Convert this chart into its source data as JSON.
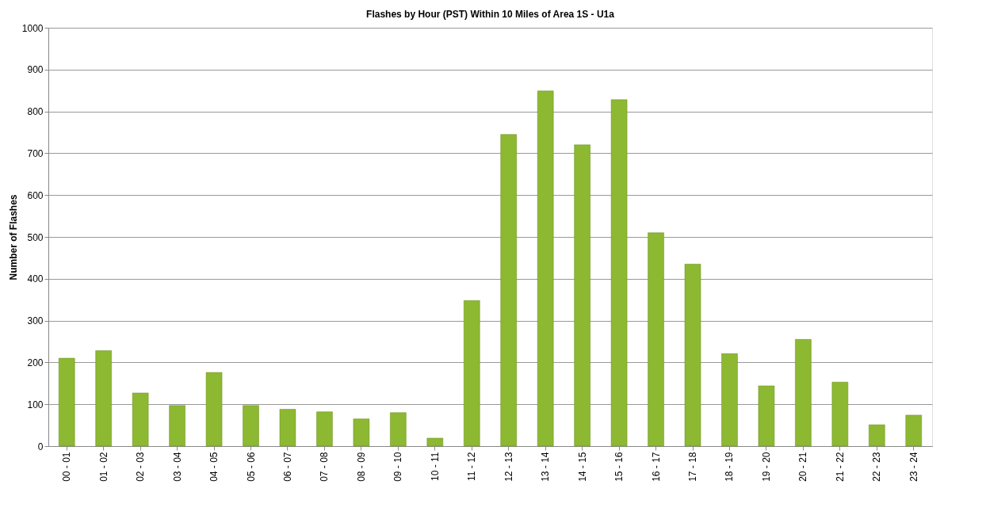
{
  "chart_data": {
    "type": "bar",
    "title": "Flashes by Hour (PST)  Within 10 Miles of Area 1S - U1a",
    "ylabel": "Number of Flashes",
    "categories": [
      "00 - 01",
      "01 - 02",
      "02 - 03",
      "03 - 04",
      "04 - 05",
      "05 - 06",
      "06 - 07",
      "07 - 08",
      "08 - 09",
      "09 - 10",
      "10 - 11",
      "11 - 12",
      "12 - 13",
      "13 - 14",
      "14 - 15",
      "15 - 16",
      "16 - 17",
      "17 - 18",
      "18 - 19",
      "19 - 20",
      "20 - 21",
      "21 - 22",
      "22 - 23",
      "23 - 24"
    ],
    "values": [
      210,
      228,
      127,
      97,
      176,
      97,
      88,
      82,
      65,
      80,
      19,
      348,
      745,
      849,
      720,
      828,
      510,
      435,
      221,
      144,
      255,
      153,
      51,
      74
    ],
    "color": "#8db832",
    "ylim": [
      0,
      1000
    ],
    "yticks": [
      0,
      100,
      200,
      300,
      400,
      500,
      600,
      700,
      800,
      900,
      1000
    ],
    "grid": "y"
  }
}
